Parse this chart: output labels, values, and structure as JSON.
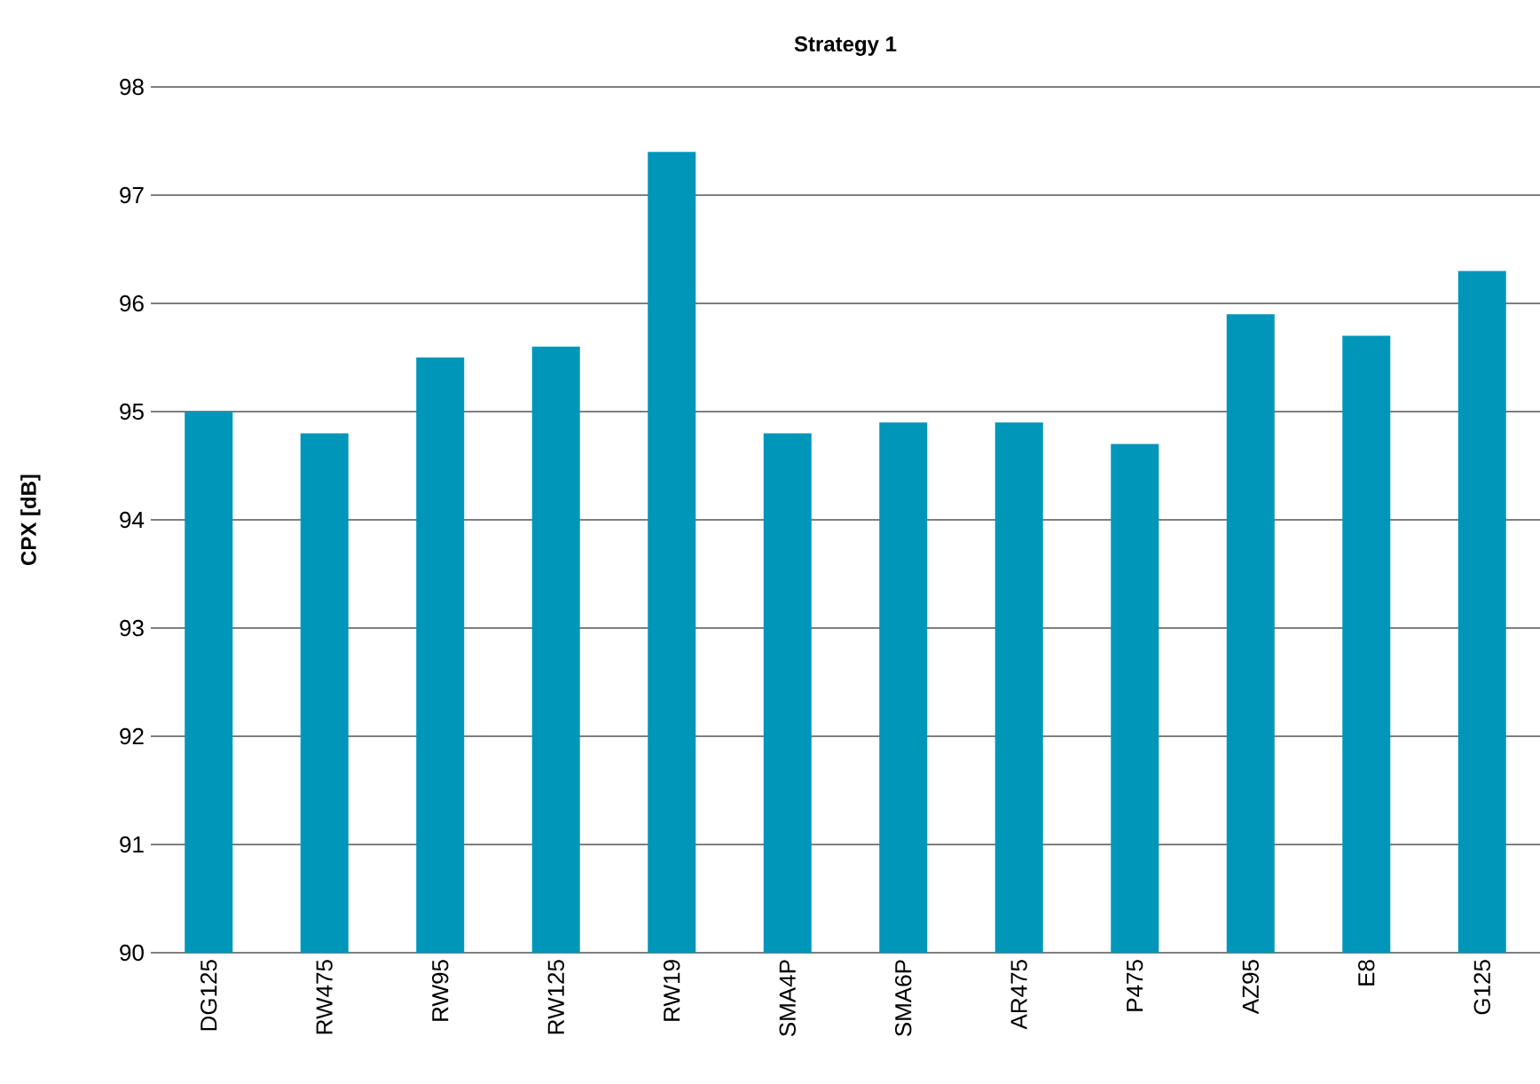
{
  "chart_data": {
    "type": "bar",
    "title": "Strategy 1",
    "ylabel": "CPX [dB]",
    "categories": [
      "DG125",
      "RW475",
      "RW95",
      "RW125",
      "RW19",
      "SMA4P",
      "SMA6P",
      "AR475",
      "P475",
      "AZ95",
      "E8",
      "G125"
    ],
    "values": [
      95.0,
      94.8,
      95.5,
      95.6,
      97.4,
      94.8,
      94.9,
      94.9,
      94.7,
      95.9,
      95.7,
      96.3
    ],
    "color": "#0096b9",
    "ylim": [
      90,
      98
    ],
    "yticks": [
      90,
      91,
      92,
      93,
      94,
      95,
      96,
      97,
      98
    ],
    "grid": "y"
  }
}
